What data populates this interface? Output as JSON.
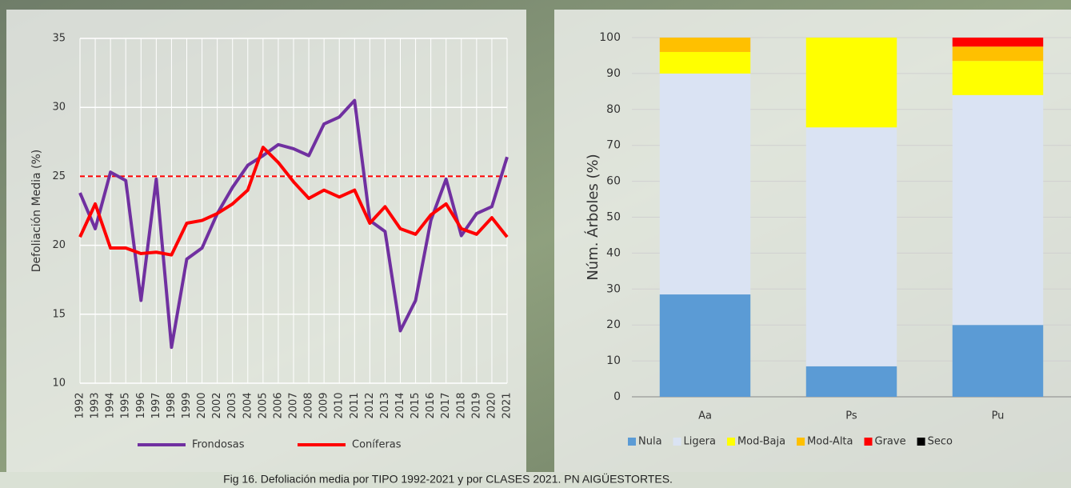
{
  "caption": "Fig 16. Defoliación media por TIPO 1992-2021 y por CLASES 2021. PN AIGÜESTORTES.",
  "chart_data": [
    {
      "type": "line",
      "y_label": "Defoliación Media (%)",
      "categories": [
        "1992",
        "1993",
        "1994",
        "1995",
        "1996",
        "1997",
        "1998",
        "1999",
        "2000",
        "2002",
        "2003",
        "2004",
        "2005",
        "2006",
        "2007",
        "2008",
        "2009",
        "2010",
        "2011",
        "2012",
        "2013",
        "2014",
        "2015",
        "2016",
        "2017",
        "2018",
        "2019",
        "2020",
        "2021"
      ],
      "series": [
        {
          "name": "Frondosas",
          "color": "#7030a0",
          "values": [
            23.8,
            21.2,
            25.3,
            24.7,
            16,
            24.8,
            12.6,
            19,
            19.8,
            22.3,
            24.2,
            25.8,
            26.5,
            27.3,
            27,
            26.5,
            28.8,
            29.3,
            30.5,
            21.8,
            21,
            13.8,
            16,
            21.8,
            24.8,
            20.7,
            22.3,
            22.8,
            26.4
          ]
        },
        {
          "name": "Coníferas",
          "color": "#ff0000",
          "values": [
            20.6,
            23,
            19.8,
            19.8,
            19.4,
            19.5,
            19.3,
            21.6,
            21.8,
            22.3,
            23,
            24,
            27.1,
            26,
            24.6,
            23.4,
            24,
            23.5,
            24,
            21.6,
            22.8,
            21.2,
            20.8,
            22.2,
            23,
            21.2,
            20.8,
            22,
            20.6
          ]
        }
      ],
      "reference_line": 25,
      "reference_color": "#ff0000",
      "ylim": [
        10,
        35
      ],
      "yticks": [
        10,
        15,
        20,
        25,
        30,
        35
      ],
      "grid": true,
      "legend": "bottom"
    },
    {
      "type": "stacked_bar",
      "y_label": "Núm. Árboles (%)",
      "categories": [
        "Aa",
        "Ps",
        "Pu"
      ],
      "series": [
        {
          "name": "Nula",
          "color": "#5b9bd5",
          "values": [
            28.5,
            8.5,
            20
          ]
        },
        {
          "name": "Ligera",
          "color": "#dae3f3",
          "values": [
            61.5,
            66.5,
            64
          ]
        },
        {
          "name": "Mod-Baja",
          "color": "#ffff00",
          "values": [
            6,
            25,
            9.5
          ]
        },
        {
          "name": "Mod-Alta",
          "color": "#ffc000",
          "values": [
            4,
            0,
            4
          ]
        },
        {
          "name": "Grave",
          "color": "#ff0000",
          "values": [
            0,
            0,
            2.5
          ]
        },
        {
          "name": "Seco",
          "color": "#000000",
          "values": [
            0,
            0,
            0
          ]
        }
      ],
      "ylim": [
        0,
        100
      ],
      "yticks": [
        0,
        10,
        20,
        30,
        40,
        50,
        60,
        70,
        80,
        90,
        100
      ],
      "grid": true,
      "legend": "bottom"
    }
  ]
}
